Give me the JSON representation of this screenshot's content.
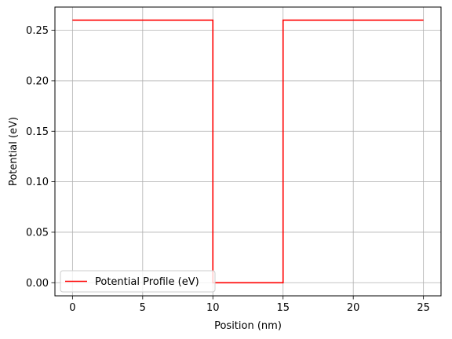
{
  "chart_data": {
    "type": "line",
    "title": "",
    "xlabel": "Position (nm)",
    "ylabel": "Potential (eV)",
    "xlim": [
      -1.25,
      26.25
    ],
    "ylim": [
      -0.013,
      0.273
    ],
    "x_ticks": [
      0,
      5,
      10,
      15,
      20,
      25
    ],
    "x_tick_labels": [
      "0",
      "5",
      "10",
      "15",
      "20",
      "25"
    ],
    "y_ticks": [
      0.0,
      0.05,
      0.1,
      0.15,
      0.2,
      0.25
    ],
    "y_tick_labels": [
      "0.00",
      "0.05",
      "0.10",
      "0.15",
      "0.20",
      "0.25"
    ],
    "grid": true,
    "legend_position": "lower-left",
    "series": [
      {
        "name": "Potential Profile (eV)",
        "color": "#ff0000",
        "x": [
          0,
          10,
          10,
          15,
          15,
          25
        ],
        "y": [
          0.26,
          0.26,
          0.0,
          0.0,
          0.26,
          0.26
        ]
      }
    ]
  }
}
